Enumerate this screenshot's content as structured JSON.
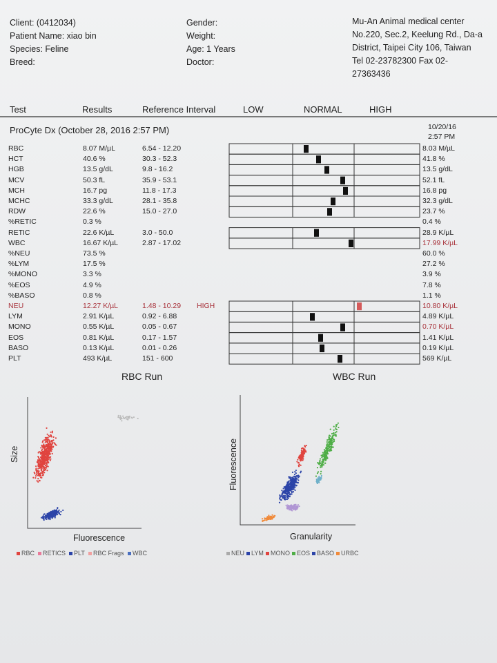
{
  "header": {
    "client": "Client:  (0412034)",
    "patient": "Patient Name: xiao bin",
    "species": "Species: Feline",
    "breed": "Breed:",
    "gender": "Gender:",
    "weight": "Weight:",
    "age": "Age: 1 Years",
    "doctor": "Doctor:",
    "clinic": [
      "Mu-An Animal medical center",
      "No.220, Sec.2, Keelung Rd., Da-a",
      "District, Taipei City 106, Taiwan",
      "Tel 02-23782300  Fax 02-",
      "27363436"
    ]
  },
  "columns": [
    "Test",
    "Results",
    "Reference Interval",
    "LOW",
    "NORMAL",
    "HIGH"
  ],
  "run": {
    "title": "ProCyte Dx (October 28, 2016 2:57 PM)",
    "prev_date": "10/20/16",
    "prev_time": "2:57 PM"
  },
  "table": {
    "rows": [
      [
        "RBC",
        "8.07 M/µL",
        "6.54 - 12.20",
        "",
        "8.03 M/µL"
      ],
      [
        "HCT",
        "40.6 %",
        "30.3 - 52.3",
        "",
        "41.8 %"
      ],
      [
        "HGB",
        "13.5 g/dL",
        "9.8 - 16.2",
        "",
        "13.5 g/dL"
      ],
      [
        "MCV",
        "50.3 fL",
        "35.9 - 53.1",
        "",
        "52.1 fL"
      ],
      [
        "MCH",
        "16.7 pg",
        "11.8 - 17.3",
        "",
        "16.8 pg"
      ],
      [
        "MCHC",
        "33.3 g/dL",
        "28.1 - 35.8",
        "",
        "32.3 g/dL"
      ],
      [
        "RDW",
        "22.6 %",
        "15.0 - 27.0",
        "",
        "23.7 %"
      ],
      [
        "%RETIC",
        "0.3 %",
        "",
        "",
        "0.4 %"
      ],
      [
        "RETIC",
        "22.6 K/µL",
        "3.0 - 50.0",
        "",
        "28.9 K/µL"
      ],
      [
        "WBC",
        "16.67 K/µL",
        "2.87 - 17.02",
        "",
        "17.99 K/µL"
      ],
      [
        "%NEU",
        "73.5 %",
        "",
        "",
        "60.0 %"
      ],
      [
        "%LYM",
        "17.5 %",
        "",
        "",
        "27.2 %"
      ],
      [
        "%MONO",
        "3.3 %",
        "",
        "",
        "3.9 %"
      ],
      [
        "%EOS",
        "4.9 %",
        "",
        "",
        "7.8 %"
      ],
      [
        "%BASO",
        "0.8 %",
        "",
        "",
        "1.1 %"
      ],
      [
        "NEU",
        "12.27 K/µL",
        "1.48 - 10.29",
        "HIGH",
        "10.80 K/µL"
      ],
      [
        "LYM",
        "2.91 K/µL",
        "0.92 - 6.88",
        "",
        "4.89 K/µL"
      ],
      [
        "MONO",
        "0.55 K/µL",
        "0.05 - 0.67",
        "",
        "0.70 K/µL"
      ],
      [
        "EOS",
        "0.81 K/µL",
        "0.17 - 1.57",
        "",
        "1.41 K/µL"
      ],
      [
        "BASO",
        "0.13 K/µL",
        "0.01 - 0.26",
        "",
        "0.19 K/µL"
      ],
      [
        "PLT",
        "493 K/µL",
        "151 - 600",
        "",
        "569 K/µL"
      ]
    ],
    "alert_color": "#a8323a"
  },
  "rbc_run": {
    "title": "RBC Run",
    "x_label": "Fluorescence",
    "y_label": "Size",
    "legend": [
      "RBC",
      "RETICS",
      "PLT",
      "RBC Frags",
      "WBC"
    ]
  },
  "wbc_run": {
    "title": "WBC Run",
    "x_label": "Granularity",
    "y_label": "Fluorescence",
    "legend": [
      "NEU",
      "LYM",
      "MONO",
      "EOS",
      "BASO",
      "URBC"
    ]
  }
}
